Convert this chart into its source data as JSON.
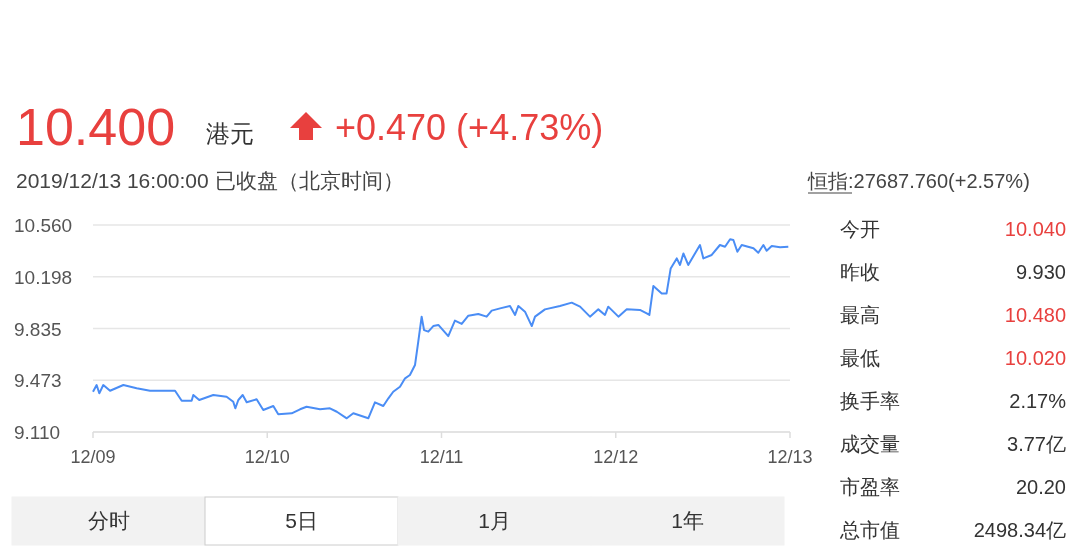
{
  "chart_data": [
    {
      "type": "line",
      "title": "10.400",
      "subtitle": "2019/12/13 16:00:00 已收盘（北京时间）",
      "annotations": [
        "港元",
        "+0.470 (+4.73%)",
        "分时",
        "5日",
        "1月",
        "1年"
      ],
      "xlim": [
        "2019-12-09",
        "2019-12-13"
      ],
      "xticks": [
        {
          "value": "2019-12-09",
          "label": "12/09"
        },
        {
          "value": "2019-12-10",
          "label": "12/10"
        },
        {
          "value": "2019-12-11",
          "label": "12/11"
        },
        {
          "value": "2019-12-12",
          "label": "12/12"
        },
        {
          "value": "2019-12-13",
          "label": "12/13"
        }
      ],
      "ylim": [
        9.11,
        10.56
      ],
      "yticks": [
        {
          "value": 9.11,
          "label": "9.110"
        },
        {
          "value": 9.473,
          "label": "9.473"
        },
        {
          "value": 9.835,
          "label": "9.835"
        },
        {
          "value": 10.198,
          "label": "10.198"
        },
        {
          "value": 10.56,
          "label": "10.560"
        }
      ],
      "grid": "y",
      "marker": "none",
      "line_style": "solid",
      "series": [
        {
          "color": "#4a8df5",
          "x": [
            "2019-12-09T00:00",
            "2019-12-09T00:30",
            "2019-12-09T00:52",
            "2019-12-09T01:25",
            "2019-12-09T02:21",
            "2019-12-09T04:11",
            "2019-12-09T06:01",
            "2019-12-09T07:51",
            "2019-12-09T09:14",
            "2019-12-09T11:18",
            "2019-12-09T12:13",
            "2019-12-09T13:35",
            "2019-12-09T13:49",
            "2019-12-09T14:38",
            "2019-12-09T16:34",
            "2019-12-09T18:24",
            "2019-12-09T19:19",
            "2019-12-09T19:36",
            "2019-12-09T20:01",
            "2019-12-09T20:37",
            "2019-12-09T21:10",
            "2019-12-09T22:32",
            "2019-12-09T23:27",
            "2019-12-10T00:50",
            "2019-12-10T01:31",
            "2019-12-10T03:22",
            "2019-12-10T04:31",
            "2019-12-10T05:25",
            "2019-12-10T07:16",
            "2019-12-10T08:38",
            "2019-12-10T09:35",
            "2019-12-10T10:57",
            "2019-12-10T11:51",
            "2019-12-10T13:55",
            "2019-12-10T14:50",
            "2019-12-10T15:59",
            "2019-12-10T16:41",
            "2019-12-10T17:21",
            "2019-12-10T18:17",
            "2019-12-10T18:59",
            "2019-12-10T19:39",
            "2019-12-10T20:21",
            "2019-12-10T20:48",
            "2019-12-10T21:16",
            "2019-12-10T21:36",
            "2019-12-10T22:11",
            "2019-12-10T22:52",
            "2019-12-10T23:34",
            "2019-12-11T00:56",
            "2019-12-11T01:51",
            "2019-12-11T02:47",
            "2019-12-11T03:42",
            "2019-12-11T05:04",
            "2019-12-11T06:13",
            "2019-12-11T06:55",
            "2019-12-11T08:04",
            "2019-12-11T09:26",
            "2019-12-11T10:08",
            "2019-12-11T10:35",
            "2019-12-11T11:30",
            "2019-12-11T12:26",
            "2019-12-11T12:53",
            "2019-12-11T14:15",
            "2019-12-11T16:19",
            "2019-12-11T17:56",
            "2019-12-11T19:05",
            "2019-12-11T20:27",
            "2019-12-11T21:36",
            "2019-12-11T22:31",
            "2019-12-11T22:58",
            "2019-12-12T00:22",
            "2019-12-12T01:31",
            "2019-12-12T03:20",
            "2019-12-12T04:16",
            "2019-12-12T04:38",
            "2019-12-12T05:11",
            "2019-12-12T06:20",
            "2019-12-12T07:00",
            "2019-12-12T07:34",
            "2019-12-12T08:24",
            "2019-12-12T08:51",
            "2019-12-12T09:19",
            "2019-12-12T09:59",
            "2019-12-12T11:36",
            "2019-12-12T12:04",
            "2019-12-12T13:13",
            "2019-12-12T14:21",
            "2019-12-12T15:03",
            "2019-12-12T15:45",
            "2019-12-12T16:12",
            "2019-12-12T16:45",
            "2019-12-12T17:21",
            "2019-12-12T18:58",
            "2019-12-12T19:38",
            "2019-12-12T20:20",
            "2019-12-12T20:47",
            "2019-12-12T21:29",
            "2019-12-12T22:38",
            "2019-12-12T23:46"
          ],
          "values": [
            9.392,
            9.439,
            9.381,
            9.439,
            9.399,
            9.439,
            9.416,
            9.399,
            9.399,
            9.399,
            9.329,
            9.329,
            9.369,
            9.334,
            9.369,
            9.357,
            9.322,
            9.276,
            9.334,
            9.369,
            9.318,
            9.339,
            9.264,
            9.292,
            9.234,
            9.241,
            9.269,
            9.287,
            9.269,
            9.276,
            9.252,
            9.206,
            9.241,
            9.206,
            9.318,
            9.292,
            9.346,
            9.392,
            9.427,
            9.486,
            9.509,
            9.579,
            9.743,
            9.918,
            9.824,
            9.813,
            9.852,
            9.86,
            9.782,
            9.89,
            9.867,
            9.925,
            9.937,
            9.918,
            9.96,
            9.976,
            9.993,
            9.93,
            9.993,
            9.953,
            9.852,
            9.918,
            9.969,
            9.993,
            10.016,
            9.988,
            9.918,
            9.969,
            9.93,
            9.988,
            9.918,
            9.969,
            9.965,
            9.941,
            9.93,
            10.133,
            10.081,
            10.081,
            10.256,
            10.326,
            10.28,
            10.361,
            10.28,
            10.42,
            10.326,
            10.35,
            10.42,
            10.408,
            10.46,
            10.455,
            10.373,
            10.42,
            10.397,
            10.366,
            10.42,
            10.38,
            10.413,
            10.404,
            10.408
          ]
        }
      ]
    },
    {
      "type": "other",
      "annotations": [
        "恒指:27687.760(+2.57%)",
        "今开",
        "10.040",
        "昨收",
        "9.930",
        "最高",
        "10.480",
        "最低",
        "10.020",
        "换手率",
        "2.17%",
        "成交量",
        "3.77亿",
        "市盈率",
        "20.20",
        "总市值",
        "2498.34亿"
      ]
    }
  ]
}
